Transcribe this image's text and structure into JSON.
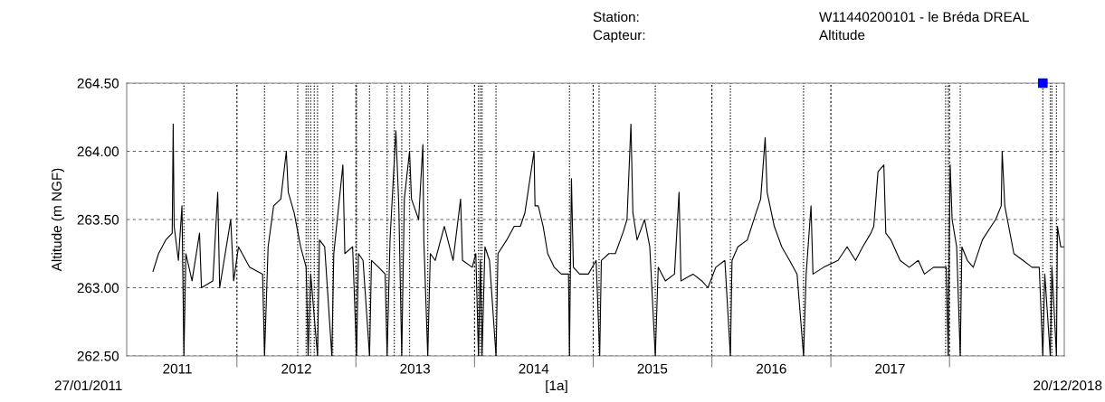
{
  "chart_data": {
    "type": "line",
    "ylabel": "Altitude (m NGF)",
    "annotations": [
      "Station:",
      "W11440200101 - le Bréda DREAL",
      "Capteur:",
      "Altitude",
      "27/01/2011",
      "[1a]",
      "20/12/2018"
    ],
    "xlim": [
      "2011-01-27",
      "2018-12-20"
    ],
    "xticks": [
      {
        "value": "2012-01-01",
        "label": null
      },
      {
        "value": "2013-01-01",
        "label": null
      },
      {
        "value": "2014-01-01",
        "label": null
      },
      {
        "value": "2015-01-01",
        "label": null
      },
      {
        "value": "2016-01-01",
        "label": null
      },
      {
        "value": "2017-01-01",
        "label": null
      },
      {
        "value": "2018-01-01",
        "label": null
      },
      {
        "value": "2011-07-02",
        "label": "2011"
      },
      {
        "value": "2012-07-02",
        "label": "2012"
      },
      {
        "value": "2013-07-02",
        "label": "2013"
      },
      {
        "value": "2014-07-02",
        "label": "2014"
      },
      {
        "value": "2015-07-02",
        "label": "2015"
      },
      {
        "value": "2016-07-02",
        "label": "2016"
      },
      {
        "value": "2017-07-02",
        "label": "2017"
      }
    ],
    "ylim": [
      262.5,
      264.5
    ],
    "yticks": [
      {
        "value": 262.5,
        "label": "262.50"
      },
      {
        "value": 263.0,
        "label": "263.00"
      },
      {
        "value": 263.5,
        "label": "263.50"
      },
      {
        "value": 264.0,
        "label": "264.00"
      },
      {
        "value": 264.5,
        "label": "264.50"
      }
    ],
    "grid": true,
    "legend": false,
    "marker": "none",
    "line_style": "solid",
    "series": [
      {
        "color": "#000000",
        "x": [
          "2011-04-18",
          "2011-05-05",
          "2011-05-27",
          "2011-06-16",
          "2011-06-19",
          "2011-06-22",
          "2011-07-05",
          "2011-07-16",
          "2011-07-22",
          "2011-07-28",
          "2011-08-16",
          "2011-09-08",
          "2011-09-14",
          "2011-10-19",
          "2011-11-03",
          "2011-11-09",
          "2011-12-13",
          "2011-12-22",
          "2012-01-06",
          "2012-02-09",
          "2012-03-20",
          "2012-03-26",
          "2012-04-06",
          "2012-04-23",
          "2012-05-15",
          "2012-06-01",
          "2012-06-07",
          "2012-06-25",
          "2012-07-15",
          "2012-08-01",
          "2012-08-07",
          "2012-08-15",
          "2012-09-05",
          "2012-09-11",
          "2012-09-27",
          "2012-10-19",
          "2012-10-25",
          "2012-11-22",
          "2012-11-28",
          "2012-12-22",
          "2013-01-03",
          "2013-01-09",
          "2013-01-23",
          "2013-02-12",
          "2013-02-18",
          "2013-03-12",
          "2013-04-01",
          "2013-04-07",
          "2013-04-16",
          "2013-05-04",
          "2013-05-13",
          "2013-05-22",
          "2013-05-30",
          "2013-06-15",
          "2013-06-21",
          "2013-07-13",
          "2013-07-26",
          "2013-07-29",
          "2013-08-10",
          "2013-08-18",
          "2013-09-02",
          "2013-09-30",
          "2013-10-27",
          "2013-11-19",
          "2013-11-25",
          "2013-12-25",
          "2014-01-05",
          "2014-01-13",
          "2014-01-19",
          "2014-01-24",
          "2014-02-02",
          "2014-02-16",
          "2014-03-08",
          "2014-03-14",
          "2014-04-10",
          "2014-05-03",
          "2014-05-22",
          "2014-06-05",
          "2014-07-03",
          "2014-07-06",
          "2014-07-16",
          "2014-07-31",
          "2014-08-14",
          "2014-09-03",
          "2014-09-25",
          "2014-10-17",
          "2014-10-20",
          "2014-10-26",
          "2014-11-01",
          "2014-11-20",
          "2014-12-17",
          "2015-01-10",
          "2015-01-21",
          "2015-01-26",
          "2015-02-18",
          "2015-03-10",
          "2015-04-02",
          "2015-04-15",
          "2015-04-27",
          "2015-05-03",
          "2015-05-16",
          "2015-06-08",
          "2015-06-24",
          "2015-07-11",
          "2015-07-20",
          "2015-08-11",
          "2015-09-08",
          "2015-09-22",
          "2015-09-28",
          "2015-11-04",
          "2015-12-01",
          "2015-12-20",
          "2016-01-13",
          "2016-02-10",
          "2016-02-27",
          "2016-03-03",
          "2016-03-21",
          "2016-04-19",
          "2016-05-16",
          "2016-05-30",
          "2016-06-13",
          "2016-06-19",
          "2016-07-11",
          "2016-08-03",
          "2016-08-27",
          "2016-09-19",
          "2016-10-09",
          "2016-10-17",
          "2016-11-01",
          "2016-11-07",
          "2016-12-10",
          "2017-01-23",
          "2017-02-20",
          "2017-03-18",
          "2017-04-09",
          "2017-05-04",
          "2017-05-13",
          "2017-05-26",
          "2017-06-13",
          "2017-06-19",
          "2017-07-05",
          "2017-08-02",
          "2017-08-30",
          "2017-09-27",
          "2017-10-16",
          "2017-11-13",
          "2017-12-05",
          "2017-12-22",
          "2017-12-28",
          "2018-01-03",
          "2018-01-09",
          "2018-01-23",
          "2018-02-03",
          "2018-02-08",
          "2018-02-25",
          "2018-03-15",
          "2018-04-12",
          "2018-05-09",
          "2018-05-23",
          "2018-06-09",
          "2018-06-12",
          "2018-06-20",
          "2018-07-06",
          "2018-07-18",
          "2018-08-15",
          "2018-09-12",
          "2018-10-04",
          "2018-10-15",
          "2018-10-21",
          "2018-11-07",
          "2018-11-12",
          "2018-11-26",
          "2018-11-29",
          "2018-12-09",
          "2018-12-18"
        ],
        "values": [
          263.12,
          263.25,
          263.35,
          263.4,
          264.2,
          263.45,
          263.2,
          263.6,
          262.5,
          263.25,
          263.05,
          263.4,
          263.0,
          263.05,
          263.7,
          263.0,
          263.5,
          263.05,
          263.3,
          263.15,
          263.1,
          262.5,
          263.3,
          263.6,
          263.65,
          264.0,
          263.7,
          263.55,
          263.3,
          263.15,
          262.5,
          263.1,
          262.5,
          263.35,
          263.3,
          262.5,
          263.25,
          263.9,
          263.25,
          263.3,
          262.5,
          263.25,
          263.2,
          262.5,
          263.2,
          263.15,
          263.1,
          262.5,
          263.35,
          264.15,
          263.6,
          262.5,
          263.65,
          264.0,
          263.65,
          263.5,
          264.05,
          263.35,
          262.5,
          263.25,
          263.2,
          263.45,
          263.2,
          263.65,
          263.2,
          263.15,
          263.25,
          262.5,
          263.2,
          262.5,
          263.3,
          263.2,
          262.5,
          263.25,
          263.35,
          263.45,
          263.45,
          263.55,
          264.0,
          263.6,
          263.6,
          263.45,
          263.25,
          263.15,
          263.1,
          263.1,
          262.5,
          263.8,
          263.15,
          263.1,
          263.1,
          263.2,
          262.5,
          263.2,
          263.25,
          263.25,
          263.4,
          263.5,
          264.2,
          263.55,
          263.35,
          263.5,
          263.3,
          262.5,
          263.15,
          263.05,
          263.1,
          263.7,
          263.05,
          263.1,
          263.05,
          263.0,
          263.15,
          263.2,
          262.5,
          263.2,
          263.3,
          263.35,
          263.55,
          263.65,
          264.1,
          263.7,
          263.45,
          263.3,
          263.2,
          263.1,
          262.5,
          263.1,
          263.6,
          263.1,
          263.15,
          263.2,
          263.3,
          263.2,
          263.3,
          263.4,
          263.45,
          263.85,
          263.9,
          263.4,
          263.35,
          263.2,
          263.15,
          263.2,
          263.1,
          263.15,
          263.15,
          263.15,
          262.5,
          263.9,
          263.5,
          263.3,
          262.5,
          263.3,
          263.2,
          263.15,
          263.35,
          263.45,
          263.5,
          263.6,
          264.0,
          263.6,
          263.4,
          263.25,
          263.2,
          263.15,
          263.15,
          262.5,
          263.1,
          262.5,
          263.15,
          262.5,
          263.45,
          263.3,
          263.3
        ]
      },
      {
        "type": "scatter",
        "color": "#0000ff",
        "marker": "square",
        "x": [
          "2018-10-15"
        ],
        "values": [
          264.5
        ]
      }
    ],
    "ref_lines": [
      {
        "axis": "x",
        "value": "2011-07-22",
        "line_style": "dotted",
        "color": "#000000"
      },
      {
        "axis": "x",
        "value": "2012-03-26",
        "line_style": "dotted",
        "color": "#000000"
      },
      {
        "axis": "x",
        "value": "2012-07-06",
        "line_style": "dotted",
        "color": "#000000"
      },
      {
        "axis": "x",
        "value": "2012-08-01",
        "line_style": "dotted",
        "color": "#000000"
      },
      {
        "axis": "x",
        "value": "2012-08-07",
        "line_style": "dotted",
        "color": "#000000"
      },
      {
        "axis": "x",
        "value": "2012-08-15",
        "line_style": "dotted",
        "color": "#000000"
      },
      {
        "axis": "x",
        "value": "2012-08-26",
        "line_style": "dotted",
        "color": "#000000"
      },
      {
        "axis": "x",
        "value": "2012-09-05",
        "line_style": "dotted",
        "color": "#000000"
      },
      {
        "axis": "x",
        "value": "2012-10-22",
        "line_style": "dotted",
        "color": "#000000"
      },
      {
        "axis": "x",
        "value": "2013-01-03",
        "line_style": "dotted",
        "color": "#000000"
      },
      {
        "axis": "x",
        "value": "2013-02-12",
        "line_style": "dotted",
        "color": "#000000"
      },
      {
        "axis": "x",
        "value": "2013-04-07",
        "line_style": "dotted",
        "color": "#000000"
      },
      {
        "axis": "x",
        "value": "2013-04-29",
        "line_style": "dotted",
        "color": "#000000"
      },
      {
        "axis": "x",
        "value": "2013-05-22",
        "line_style": "dotted",
        "color": "#000000"
      },
      {
        "axis": "x",
        "value": "2013-06-15",
        "line_style": "dotted",
        "color": "#000000"
      },
      {
        "axis": "x",
        "value": "2013-08-10",
        "line_style": "dotted",
        "color": "#000000"
      },
      {
        "axis": "x",
        "value": "2014-01-13",
        "line_style": "dotted",
        "color": "#000000"
      },
      {
        "axis": "x",
        "value": "2014-01-19",
        "line_style": "dotted",
        "color": "#000000"
      },
      {
        "axis": "x",
        "value": "2014-01-24",
        "line_style": "dotted",
        "color": "#000000"
      },
      {
        "axis": "x",
        "value": "2014-03-08",
        "line_style": "dotted",
        "color": "#000000"
      },
      {
        "axis": "x",
        "value": "2014-10-20",
        "line_style": "dotted",
        "color": "#000000"
      },
      {
        "axis": "x",
        "value": "2015-01-19",
        "line_style": "dotted",
        "color": "#000000"
      },
      {
        "axis": "x",
        "value": "2015-07-11",
        "line_style": "dotted",
        "color": "#000000"
      },
      {
        "axis": "x",
        "value": "2016-02-27",
        "line_style": "dotted",
        "color": "#000000"
      },
      {
        "axis": "x",
        "value": "2016-10-09",
        "line_style": "dotted",
        "color": "#000000"
      },
      {
        "axis": "x",
        "value": "2017-12-20",
        "line_style": "dotted",
        "color": "#000000"
      },
      {
        "axis": "x",
        "value": "2017-12-28",
        "line_style": "dotted",
        "color": "#000000"
      },
      {
        "axis": "x",
        "value": "2018-02-03",
        "line_style": "dotted",
        "color": "#000000"
      },
      {
        "axis": "x",
        "value": "2018-10-15",
        "line_style": "dotted",
        "color": "#000000"
      },
      {
        "axis": "x",
        "value": "2018-11-07",
        "line_style": "dotted",
        "color": "#000000"
      },
      {
        "axis": "x",
        "value": "2018-11-12",
        "line_style": "dotted",
        "color": "#000000"
      },
      {
        "axis": "x",
        "value": "2018-11-26",
        "line_style": "dotted",
        "color": "#000000"
      }
    ]
  }
}
